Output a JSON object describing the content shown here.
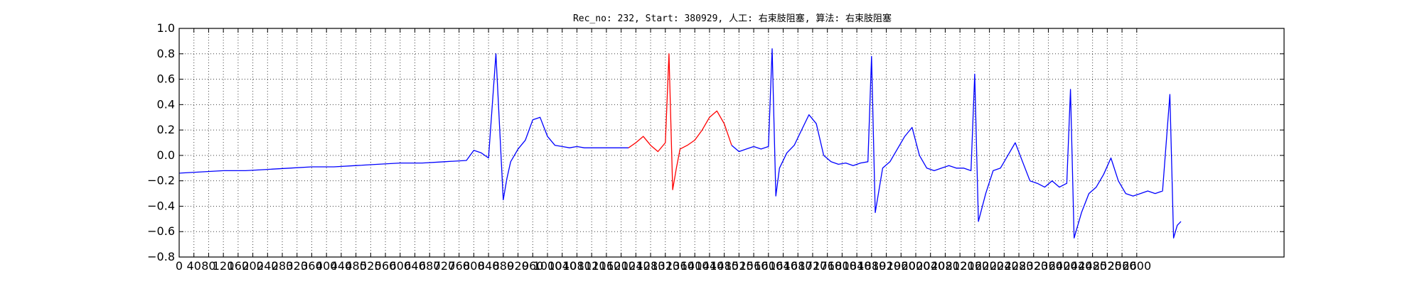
{
  "chart_data": {
    "type": "line",
    "title": "Rec_no: 232, Start: 380929, 人工: 右束肢阻塞, 算法: 右束肢阻塞",
    "xlabel": "",
    "ylabel": "",
    "xlim": [
      0,
      3000
    ],
    "ylim": [
      -0.8,
      1.0
    ],
    "grid": true,
    "x_ticks": [
      0,
      40,
      80,
      120,
      160,
      200,
      240,
      280,
      320,
      360,
      400,
      440,
      480,
      520,
      560,
      600,
      640,
      680,
      720,
      760,
      800,
      840,
      880,
      920,
      960,
      1000,
      1040,
      1080,
      1120,
      1160,
      1200,
      1240,
      1280,
      1320,
      1360,
      1400,
      1440,
      1480,
      1520,
      1560,
      1600,
      1640,
      1680,
      1720,
      1760,
      1800,
      1840,
      1880,
      1920,
      1960,
      2000,
      2040,
      2080,
      2120,
      2160,
      2200,
      2240,
      2280,
      2320,
      2360,
      2400,
      2440,
      2480,
      2520,
      2560,
      2600
    ],
    "x_tick_labels": [
      "0",
      "40",
      "80",
      "120",
      "160",
      "200",
      "240",
      "280",
      "320",
      "360",
      "400",
      "440",
      "480",
      "520",
      "560",
      "600",
      "640",
      "680",
      "720",
      "760",
      "800",
      "840",
      "880",
      "920",
      "960",
      "1000",
      "1040",
      "1080",
      "1120",
      "1160",
      "1200",
      "1240",
      "1280",
      "1320",
      "1360",
      "1400",
      "1440",
      "1480",
      "1520",
      "1560",
      "1600",
      "1640",
      "1680",
      "1720",
      "1760",
      "1800",
      "1840",
      "1880",
      "1920",
      "1960",
      "2000",
      "2040",
      "2080",
      "2120",
      "2160",
      "2200",
      "2240",
      "2280",
      "2320",
      "2360",
      "2400",
      "2440",
      "2480",
      "2520",
      "2560",
      "2600"
    ],
    "y_ticks": [
      -0.8,
      -0.6,
      -0.4,
      -0.2,
      0.0,
      0.2,
      0.4,
      0.6,
      0.8,
      1.0
    ],
    "y_tick_labels": [
      "−0.8",
      "−0.6",
      "−0.4",
      "−0.2",
      "0.0",
      "0.2",
      "0.4",
      "0.6",
      "0.8",
      "1.0"
    ],
    "series": [
      {
        "color": "#0000ff",
        "x": [
          0,
          60,
          120,
          180,
          240,
          300,
          360,
          420,
          480,
          540,
          600,
          660,
          720,
          780,
          800,
          820,
          840,
          860,
          880,
          890,
          900,
          910,
          920,
          940,
          960,
          980,
          1000,
          1020,
          1040,
          1060,
          1080,
          1100,
          1140,
          1180,
          1220
        ],
        "y": [
          -0.14,
          -0.13,
          -0.12,
          -0.12,
          -0.11,
          -0.1,
          -0.09,
          -0.09,
          -0.08,
          -0.07,
          -0.06,
          -0.06,
          -0.05,
          -0.04,
          0.04,
          0.02,
          -0.02,
          0.8,
          -0.35,
          -0.18,
          -0.05,
          0.0,
          0.05,
          0.12,
          0.28,
          0.3,
          0.15,
          0.08,
          0.07,
          0.06,
          0.07,
          0.06,
          0.06,
          0.06,
          0.06
        ]
      },
      {
        "color": "#ff0000",
        "x": [
          1220,
          1240,
          1260,
          1280,
          1300,
          1320,
          1330,
          1340,
          1350,
          1360,
          1380,
          1400,
          1420,
          1440,
          1460,
          1480,
          1500
        ],
        "y": [
          0.06,
          0.1,
          0.15,
          0.08,
          0.03,
          0.1,
          0.8,
          -0.27,
          -0.1,
          0.05,
          0.08,
          0.12,
          0.2,
          0.3,
          0.35,
          0.25,
          0.08
        ]
      },
      {
        "color": "#0000ff",
        "x": [
          1500,
          1520,
          1540,
          1560,
          1580,
          1600,
          1610,
          1620,
          1630,
          1650,
          1670,
          1690,
          1710,
          1730,
          1750,
          1770,
          1790,
          1810,
          1830,
          1850,
          1870,
          1880,
          1890,
          1910,
          1930,
          1950,
          1970,
          1990,
          2010,
          2030,
          2050,
          2070,
          2090,
          2110,
          2130,
          2150,
          2160,
          2170,
          2190,
          2210,
          2230,
          2250,
          2270,
          2290,
          2310,
          2330,
          2350,
          2370,
          2390,
          2410,
          2420,
          2430,
          2450,
          2470,
          2490,
          2510,
          2530,
          2550,
          2570,
          2590,
          2610,
          2630,
          2650,
          2670,
          2690,
          2700,
          2710,
          2720
        ],
        "y": [
          0.08,
          0.03,
          0.05,
          0.07,
          0.05,
          0.07,
          0.84,
          -0.32,
          -0.1,
          0.02,
          0.08,
          0.2,
          0.32,
          0.25,
          0.0,
          -0.05,
          -0.07,
          -0.06,
          -0.08,
          -0.06,
          -0.05,
          0.78,
          -0.45,
          -0.1,
          -0.05,
          0.05,
          0.15,
          0.22,
          0.0,
          -0.1,
          -0.12,
          -0.1,
          -0.08,
          -0.1,
          -0.1,
          -0.12,
          0.64,
          -0.52,
          -0.3,
          -0.12,
          -0.1,
          0.0,
          0.1,
          -0.05,
          -0.2,
          -0.22,
          -0.25,
          -0.2,
          -0.25,
          -0.22,
          0.52,
          -0.65,
          -0.45,
          -0.3,
          -0.25,
          -0.15,
          -0.02,
          -0.2,
          -0.3,
          -0.32,
          -0.3,
          -0.28,
          -0.3,
          -0.28,
          0.48,
          -0.65,
          -0.55,
          -0.52
        ]
      }
    ]
  }
}
